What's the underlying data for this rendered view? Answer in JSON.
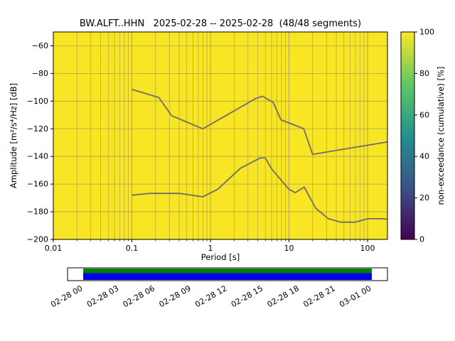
{
  "chart_data": {
    "type": "heatmap",
    "title": "BW.ALFT..HHN   2025-02-28 -- 2025-02-28  (48/48 segments)",
    "xlabel": "Period [s]",
    "ylabel": "Amplitude [m²/s⁴/Hz] [dB]",
    "x_scale": "log",
    "xlim": [
      0.01,
      179
    ],
    "ylim": [
      -200,
      -50
    ],
    "xticks": [
      0.01,
      0.1,
      1,
      10,
      100
    ],
    "xtick_labels": [
      "0.01",
      "0.1",
      "1",
      "10",
      "100"
    ],
    "yticks": [
      -60,
      -80,
      -100,
      -120,
      -140,
      -160,
      -180,
      -200
    ],
    "grid": true,
    "legend": "none",
    "background": {
      "value_percent": 100,
      "color": "#f8e524"
    },
    "colorbar": {
      "label": "non-exceedance (cumulative) [%]",
      "lim": [
        0,
        100
      ],
      "ticks": [
        0,
        20,
        40,
        60,
        80,
        100
      ],
      "colors": [
        "#440154",
        "#3b528b",
        "#21918c",
        "#5ec962",
        "#fde725"
      ]
    },
    "series": [
      {
        "name": "high-noise-model-line",
        "color": "#6e6e6e",
        "points": [
          [
            0.1,
            -91.5
          ],
          [
            0.22,
            -97.4
          ],
          [
            0.32,
            -110.5
          ],
          [
            0.8,
            -120.0
          ],
          [
            3.8,
            -98.0
          ],
          [
            4.6,
            -96.5
          ],
          [
            6.3,
            -101.0
          ],
          [
            7.9,
            -113.5
          ],
          [
            15.4,
            -120.0
          ],
          [
            20.0,
            -138.5
          ],
          [
            179.0,
            -129.5
          ]
        ]
      },
      {
        "name": "low-noise-model-line",
        "color": "#6e6e6e",
        "points": [
          [
            0.1,
            -168.0
          ],
          [
            0.17,
            -166.7
          ],
          [
            0.4,
            -166.7
          ],
          [
            0.8,
            -169.2
          ],
          [
            1.24,
            -163.7
          ],
          [
            2.4,
            -148.6
          ],
          [
            4.3,
            -141.1
          ],
          [
            5.0,
            -141.1
          ],
          [
            6.0,
            -149.0
          ],
          [
            10.0,
            -163.8
          ],
          [
            12.0,
            -166.2
          ],
          [
            15.6,
            -162.1
          ],
          [
            21.9,
            -177.5
          ],
          [
            31.6,
            -185.0
          ],
          [
            45.0,
            -187.5
          ],
          [
            70.0,
            -187.5
          ],
          [
            101.0,
            -185.0
          ],
          [
            154.0,
            -185.0
          ],
          [
            179.0,
            -185.5
          ]
        ]
      }
    ],
    "timeline": {
      "labels": [
        "02-28 00",
        "02-28 03",
        "02-28 06",
        "02-28 09",
        "02-28 12",
        "02-28 15",
        "02-28 18",
        "02-28 21",
        "03-01 00"
      ],
      "bar_colors": {
        "top": "#008000",
        "bottom": "#0000e6"
      },
      "outline": "#000000",
      "coverage_frac": [
        0.049,
        0.951
      ]
    }
  },
  "styles": {
    "grid_color": "rgba(105,105,105,0.5)",
    "axis_color": "#000000",
    "line_width": 1.8
  }
}
